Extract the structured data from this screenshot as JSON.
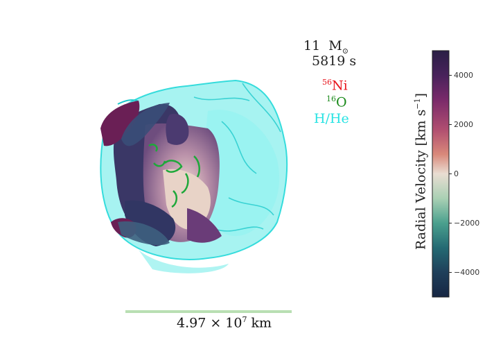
{
  "annotations": {
    "mass_value": "11",
    "mass_unit": "M",
    "time": "5819 s",
    "species": [
      {
        "sup": "56",
        "name": "Ni",
        "color": "#e8141c"
      },
      {
        "sup": "16",
        "name": "O",
        "color": "#1a8a1a"
      },
      {
        "sup": "",
        "name": "H/He",
        "color": "#27e3e3"
      }
    ]
  },
  "scale_bar": {
    "label_base": "4.97 × 10",
    "label_exp": "7",
    "label_unit": " km",
    "color": "#b9dfb3"
  },
  "colorbar": {
    "label": "Radial Velocity [km s",
    "label_exp": "−1",
    "label_end": "]",
    "vmin": -5000,
    "vmax": 5000,
    "ticks": [
      "4000",
      "2000",
      "0",
      "−2000",
      "−4000"
    ],
    "tick_values": [
      4000,
      2000,
      0,
      -2000,
      -4000
    ],
    "colors": [
      "#2a1f45",
      "#48225b",
      "#7a2a6a",
      "#b04e70",
      "#d9887a",
      "#e9ddd2",
      "#a9d0b4",
      "#4aa08e",
      "#246a73",
      "#1f3f5a",
      "#172643"
    ]
  }
}
